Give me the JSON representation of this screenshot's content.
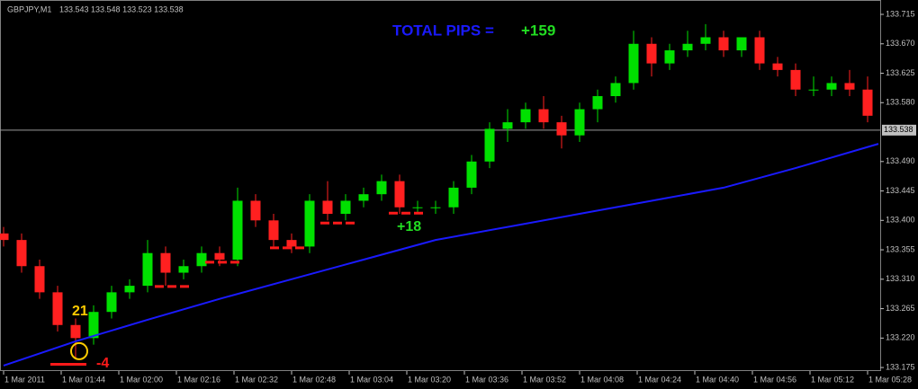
{
  "chart_data": {
    "type": "candlestick",
    "title": "GBPJPY,M1",
    "quote": "133.543 133.548 133.523 133.538",
    "x": [
      0,
      5,
      10,
      15,
      20,
      25,
      30,
      35,
      40,
      45,
      50,
      55,
      60,
      65,
      70,
      75,
      80,
      85,
      90,
      95,
      100,
      105,
      110,
      115,
      120,
      125,
      130,
      135,
      140,
      145,
      150,
      155,
      160,
      165,
      170,
      175,
      180,
      185,
      190,
      195,
      200,
      205,
      210,
      215,
      220,
      225,
      230,
      235,
      240
    ],
    "open": [
      133.38,
      133.37,
      133.33,
      133.29,
      133.24,
      133.22,
      133.26,
      133.29,
      133.3,
      133.35,
      133.32,
      133.33,
      133.35,
      133.34,
      133.43,
      133.4,
      133.37,
      133.36,
      133.43,
      133.41,
      133.43,
      133.44,
      133.46,
      133.42,
      133.42,
      133.42,
      133.45,
      133.49,
      133.54,
      133.55,
      133.57,
      133.55,
      133.53,
      133.57,
      133.59,
      133.61,
      133.67,
      133.64,
      133.66,
      133.67,
      133.68,
      133.66,
      133.68,
      133.64,
      133.63,
      133.6,
      133.6,
      133.61,
      133.6
    ],
    "high": [
      133.39,
      133.38,
      133.34,
      133.3,
      133.25,
      133.27,
      133.3,
      133.31,
      133.37,
      133.36,
      133.34,
      133.36,
      133.36,
      133.45,
      133.44,
      133.41,
      133.38,
      133.44,
      133.46,
      133.44,
      133.45,
      133.47,
      133.47,
      133.43,
      133.43,
      133.46,
      133.5,
      133.55,
      133.57,
      133.58,
      133.59,
      133.56,
      133.58,
      133.6,
      133.62,
      133.69,
      133.68,
      133.67,
      133.69,
      133.7,
      133.69,
      133.68,
      133.69,
      133.65,
      133.64,
      133.62,
      133.62,
      133.63,
      133.62
    ],
    "low": [
      133.36,
      133.32,
      133.28,
      133.23,
      133.19,
      133.21,
      133.25,
      133.28,
      133.29,
      133.3,
      133.31,
      133.32,
      133.33,
      133.33,
      133.39,
      133.36,
      133.35,
      133.35,
      133.4,
      133.4,
      133.42,
      133.43,
      133.41,
      133.41,
      133.41,
      133.41,
      133.44,
      133.48,
      133.52,
      133.54,
      133.54,
      133.51,
      133.52,
      133.55,
      133.58,
      133.6,
      133.62,
      133.63,
      133.65,
      133.66,
      133.65,
      133.65,
      133.63,
      133.62,
      133.59,
      133.59,
      133.59,
      133.59,
      133.55
    ],
    "close": [
      133.37,
      133.33,
      133.29,
      133.24,
      133.22,
      133.26,
      133.29,
      133.3,
      133.35,
      133.32,
      133.33,
      133.35,
      133.34,
      133.43,
      133.4,
      133.37,
      133.36,
      133.43,
      133.41,
      133.43,
      133.44,
      133.46,
      133.42,
      133.42,
      133.42,
      133.45,
      133.49,
      133.54,
      133.55,
      133.57,
      133.55,
      133.53,
      133.57,
      133.59,
      133.61,
      133.67,
      133.64,
      133.66,
      133.67,
      133.68,
      133.66,
      133.68,
      133.64,
      133.63,
      133.6,
      133.6,
      133.61,
      133.6,
      133.56
    ],
    "up_color": "#00e000",
    "down_color": "#ff2020",
    "ma": {
      "color": "#1a1aff",
      "x": [
        0,
        20,
        40,
        60,
        80,
        100,
        120,
        140,
        160,
        180,
        200,
        220,
        243
      ],
      "values": [
        133.178,
        133.215,
        133.248,
        133.28,
        133.31,
        133.34,
        133.37,
        133.39,
        133.41,
        133.43,
        133.45,
        133.48,
        133.517
      ]
    },
    "price_line": {
      "value": 133.538,
      "label": "133.538"
    },
    "levels": [
      {
        "price": 133.18,
        "from": 13,
        "to": 23
      },
      {
        "price": 133.299,
        "from": 42,
        "to": 52
      },
      {
        "price": 133.336,
        "from": 56,
        "to": 66
      },
      {
        "price": 133.358,
        "from": 74,
        "to": 84
      },
      {
        "price": 133.396,
        "from": 88,
        "to": 98
      },
      {
        "price": 133.411,
        "from": 107,
        "to": 117
      }
    ],
    "entry": {
      "x": 21,
      "value": 133.2
    },
    "annotations": {
      "total_label": "TOTAL PIPS =",
      "total_value": "+159",
      "entry_count": "21",
      "loss": "-4",
      "gain": "+18"
    },
    "xlim": [
      -1,
      243.5
    ],
    "ylim": [
      133.16,
      133.7315
    ],
    "yticks": [
      {
        "value": 133.715,
        "label": "133.715"
      },
      {
        "value": 133.67,
        "label": "133.670"
      },
      {
        "value": 133.625,
        "label": "133.625"
      },
      {
        "value": 133.58,
        "label": "133.580"
      },
      {
        "value": 133.49,
        "label": "133.490"
      },
      {
        "value": 133.445,
        "label": "133.445"
      },
      {
        "value": 133.4,
        "label": "133.400"
      },
      {
        "value": 133.355,
        "label": "133.355"
      },
      {
        "value": 133.31,
        "label": "133.310"
      },
      {
        "value": 133.265,
        "label": "133.265"
      },
      {
        "value": 133.22,
        "label": "133.220"
      },
      {
        "value": 133.175,
        "label": "133.175"
      }
    ],
    "xticks": [
      {
        "value": 0,
        "label": "1 Mar 2011"
      },
      {
        "value": 16,
        "label": "1 Mar 01:44"
      },
      {
        "value": 32,
        "label": "1 Mar 02:00"
      },
      {
        "value": 48,
        "label": "1 Mar 02:16"
      },
      {
        "value": 64,
        "label": "1 Mar 02:32"
      },
      {
        "value": 80,
        "label": "1 Mar 02:48"
      },
      {
        "value": 96,
        "label": "1 Mar 03:04"
      },
      {
        "value": 112,
        "label": "1 Mar 03:20"
      },
      {
        "value": 128,
        "label": "1 Mar 03:36"
      },
      {
        "value": 144,
        "label": "1 Mar 03:52"
      },
      {
        "value": 160,
        "label": "1 Mar 04:08"
      },
      {
        "value": 176,
        "label": "1 Mar 04:24"
      },
      {
        "value": 192,
        "label": "1 Mar 04:40"
      },
      {
        "value": 208,
        "label": "1 Mar 04:56"
      },
      {
        "value": 224,
        "label": "1 Mar 05:12"
      },
      {
        "value": 240,
        "label": "1 Mar 05:28"
      }
    ]
  }
}
